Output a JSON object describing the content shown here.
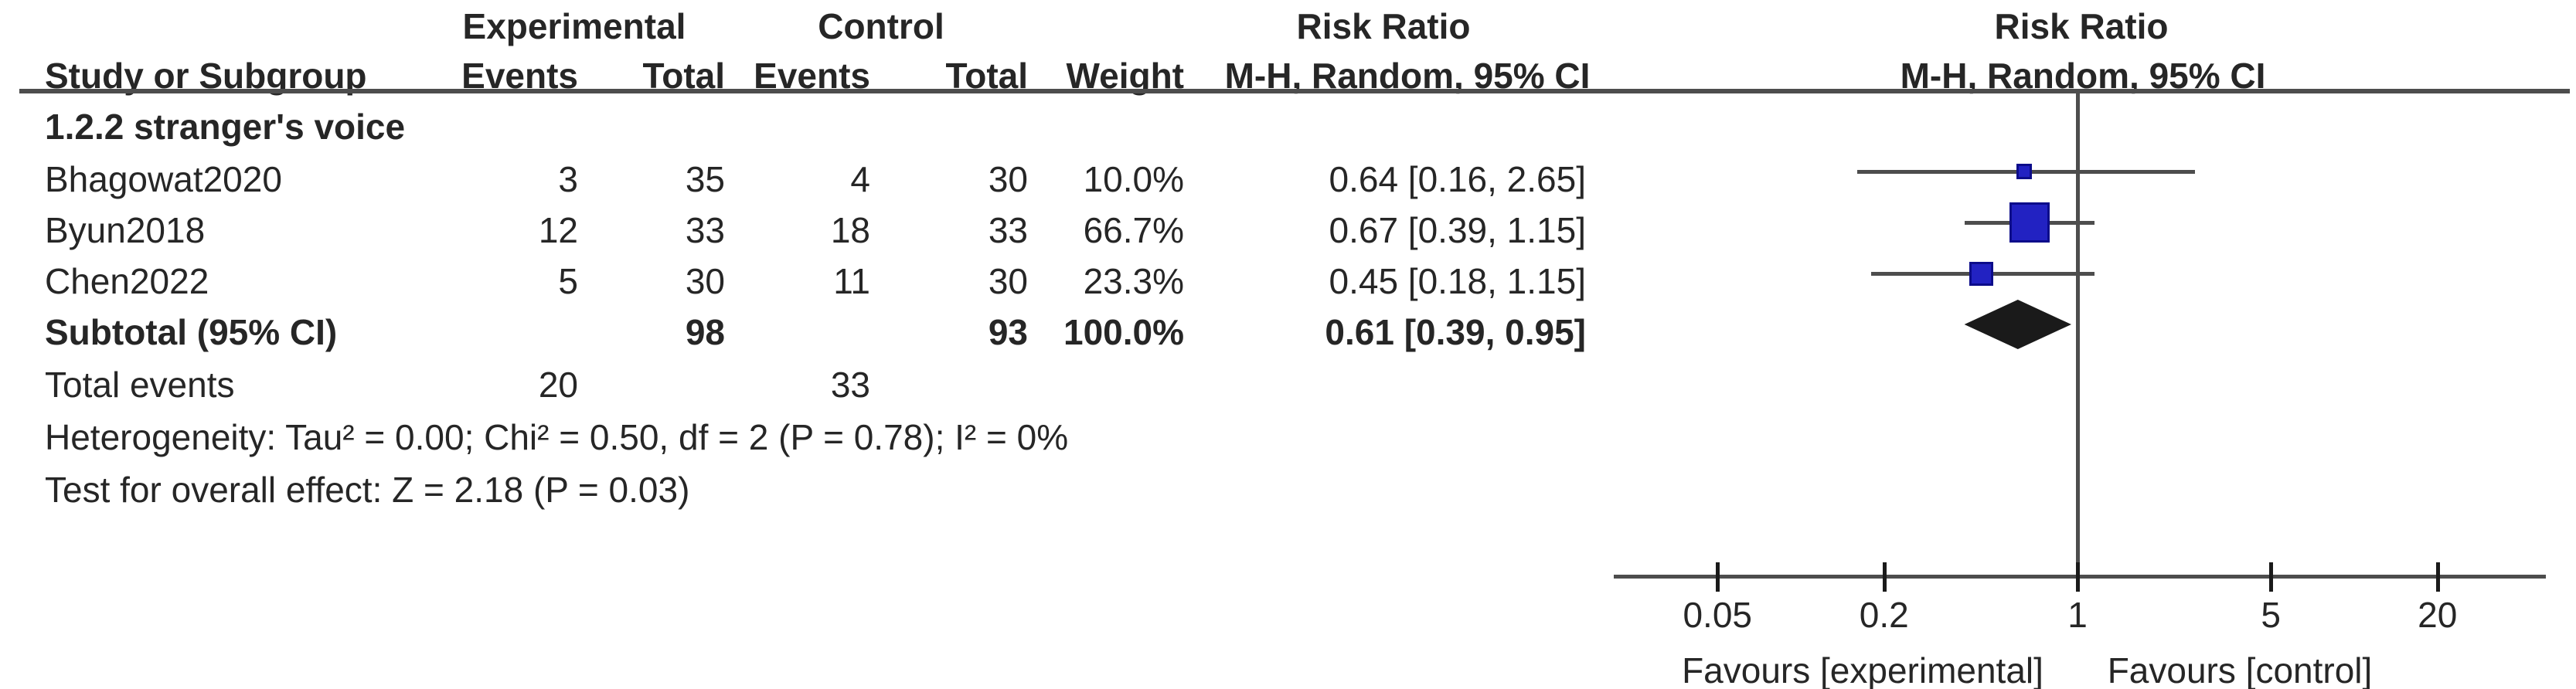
{
  "table": {
    "header": {
      "experimental": "Experimental",
      "control": "Control",
      "risk_ratio_left": "Risk Ratio",
      "risk_ratio_right": "Risk Ratio",
      "study": "Study or Subgroup",
      "events1": "Events",
      "total1": "Total",
      "events2": "Events",
      "total2": "Total",
      "weight": "Weight",
      "mh_left": "M-H, Random, 95% CI",
      "mh_right": "M-H, Random, 95% CI"
    },
    "subgroup_title": "1.2.2 stranger's voice",
    "studies": [
      {
        "name": "Bhagowat2020",
        "events1": "3",
        "total1": "35",
        "events2": "4",
        "total2": "30",
        "weight": "10.0%",
        "ci_text": "0.64 [0.16, 2.65]"
      },
      {
        "name": "Byun2018",
        "events1": "12",
        "total1": "33",
        "events2": "18",
        "total2": "33",
        "weight": "66.7%",
        "ci_text": "0.67 [0.39, 1.15]"
      },
      {
        "name": "Chen2022",
        "events1": "5",
        "total1": "30",
        "events2": "11",
        "total2": "30",
        "weight": "23.3%",
        "ci_text": "0.45 [0.18, 1.15]"
      }
    ],
    "subtotal": {
      "label": "Subtotal (95% CI)",
      "total1": "98",
      "total2": "93",
      "weight": "100.0%",
      "ci_text": "0.61 [0.39, 0.95]"
    },
    "total_events": {
      "label": "Total events",
      "events1": "20",
      "events2": "33"
    },
    "heterogeneity": "Heterogeneity: Tau² = 0.00; Chi² = 0.50, df = 2 (P = 0.78); I² = 0%",
    "overall_effect": "Test for overall effect: Z = 2.18 (P = 0.03)"
  },
  "axis": {
    "tick_labels": [
      "0.05",
      "0.2",
      "1",
      "5",
      "20"
    ],
    "favours_left": "Favours [experimental]",
    "favours_right": "Favours [control]"
  },
  "colors": {
    "square_fill": "#2222c2",
    "square_border": "#0c0c8a",
    "diamond": "#1a1a1a",
    "line": "#4d4d4d",
    "tick": "#1a1a1a",
    "text": "#262626"
  },
  "chart_data": {
    "type": "scatter",
    "subtype": "forest-plot-meta-analysis",
    "title": "Risk Ratio",
    "method": "M-H, Random, 95% CI",
    "x_scale": "log10",
    "x_ticks": [
      0.05,
      0.2,
      1,
      5,
      20
    ],
    "xlim": [
      0.02,
      49
    ],
    "null_line": 1,
    "series": [
      {
        "name": "Bhagowat2020",
        "rr": 0.64,
        "ci_low": 0.16,
        "ci_high": 2.65,
        "weight_pct": 10.0
      },
      {
        "name": "Byun2018",
        "rr": 0.67,
        "ci_low": 0.39,
        "ci_high": 1.15,
        "weight_pct": 66.7
      },
      {
        "name": "Chen2022",
        "rr": 0.45,
        "ci_low": 0.18,
        "ci_high": 1.15,
        "weight_pct": 23.3
      }
    ],
    "summary": {
      "name": "Subtotal (95% CI)",
      "rr": 0.61,
      "ci_low": 0.39,
      "ci_high": 0.95
    },
    "subgroup": "1.2.2 stranger's voice",
    "heterogeneity": {
      "tau2": 0.0,
      "chi2": 0.5,
      "df": 2,
      "p": 0.78,
      "i2_pct": 0
    },
    "overall_effect": {
      "z": 2.18,
      "p": 0.03
    },
    "total_events": {
      "experimental": 20,
      "control": 33,
      "experimental_total": 98,
      "control_total": 93
    },
    "footer_left": "Favours [experimental]",
    "footer_right": "Favours [control]"
  }
}
